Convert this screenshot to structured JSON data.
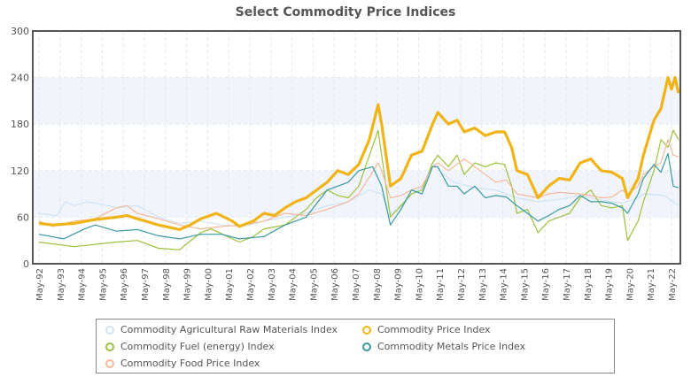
{
  "chart_data": {
    "type": "line",
    "title": "Select Commodity Price Indices",
    "xlabel": "",
    "ylabel": "",
    "ylim": [
      0,
      300
    ],
    "yticks": [
      0,
      60,
      120,
      180,
      240,
      300
    ],
    "xticks": [
      "May-92",
      "May-93",
      "May-94",
      "May-95",
      "May-96",
      "May-97",
      "May-98",
      "May-99",
      "May-00",
      "May-01",
      "May-02",
      "May-03",
      "May-04",
      "May-05",
      "May-06",
      "May-07",
      "May-08",
      "May-09",
      "May-10",
      "May-11",
      "May-12",
      "May-13",
      "May-14",
      "May-15",
      "May-16",
      "May-17",
      "May-18",
      "May-19",
      "May-20",
      "May-21",
      "May-22"
    ],
    "grid": "vertical dashed, alternating horizontal bands",
    "legend_placement": "bottom",
    "series": [
      {
        "name": "Commodity Agricultural Raw Materials Index",
        "color": "#cfe3f3",
        "width": 1.2,
        "x": [
          "1992-05",
          "1993-03",
          "1993-08",
          "1994-01",
          "1994-08",
          "1995-01",
          "1995-08",
          "1996-01",
          "1997-01",
          "1998-01",
          "1999-01",
          "2000-01",
          "2001-01",
          "2002-01",
          "2003-01",
          "2004-01",
          "2005-01",
          "2006-01",
          "2007-01",
          "2008-01",
          "2008-08",
          "2009-01",
          "2009-08",
          "2010-01",
          "2010-08",
          "2011-01",
          "2011-05",
          "2012-01",
          "2013-01",
          "2014-01",
          "2015-01",
          "2016-01",
          "2017-01",
          "2018-01",
          "2019-01",
          "2020-01",
          "2020-10",
          "2021-01",
          "2022-01",
          "2022-09"
        ],
        "y": [
          65,
          62,
          80,
          75,
          80,
          78,
          75,
          72,
          75,
          60,
          52,
          55,
          50,
          48,
          55,
          60,
          65,
          75,
          80,
          95,
          90,
          65,
          75,
          90,
          100,
          130,
          120,
          105,
          98,
          95,
          85,
          80,
          83,
          88,
          82,
          78,
          85,
          90,
          88,
          75
        ]
      },
      {
        "name": "Commodity Fuel (energy) Index",
        "color": "#9dc13a",
        "width": 1.2,
        "x": [
          "1992-05",
          "1994-01",
          "1996-01",
          "1997-01",
          "1998-01",
          "1999-01",
          "2000-01",
          "2000-07",
          "2001-11",
          "2002-07",
          "2003-01",
          "2004-01",
          "2005-01",
          "2005-07",
          "2006-01",
          "2006-07",
          "2007-01",
          "2007-07",
          "2008-06",
          "2008-08",
          "2009-01",
          "2009-07",
          "2010-01",
          "2010-07",
          "2011-01",
          "2011-04",
          "2011-10",
          "2012-03",
          "2012-07",
          "2013-01",
          "2013-07",
          "2014-01",
          "2014-06",
          "2014-10",
          "2015-01",
          "2015-07",
          "2016-01",
          "2016-07",
          "2017-01",
          "2017-07",
          "2018-01",
          "2018-07",
          "2019-01",
          "2019-07",
          "2020-01",
          "2020-04",
          "2020-10",
          "2021-01",
          "2021-07",
          "2021-11",
          "2022-03",
          "2022-06",
          "2022-09"
        ],
        "y": [
          28,
          22,
          28,
          30,
          20,
          18,
          40,
          45,
          28,
          35,
          45,
          50,
          70,
          85,
          95,
          88,
          85,
          100,
          172,
          140,
          60,
          75,
          90,
          95,
          130,
          140,
          125,
          140,
          115,
          130,
          125,
          130,
          128,
          100,
          65,
          70,
          40,
          55,
          60,
          65,
          85,
          95,
          75,
          72,
          75,
          30,
          55,
          80,
          120,
          160,
          150,
          172,
          160
        ]
      },
      {
        "name": "Commodity Food Price Index",
        "color": "#f4b89a",
        "width": 1.2,
        "x": [
          "1992-05",
          "1993-01",
          "1994-01",
          "1995-01",
          "1996-01",
          "1996-07",
          "1997-01",
          "1998-01",
          "1999-01",
          "2000-01",
          "2001-01",
          "2002-01",
          "2003-01",
          "2004-01",
          "2005-01",
          "2006-01",
          "2007-01",
          "2007-07",
          "2008-06",
          "2008-08",
          "2009-01",
          "2009-07",
          "2010-01",
          "2010-07",
          "2011-01",
          "2011-04",
          "2011-10",
          "2012-07",
          "2013-01",
          "2013-07",
          "2014-01",
          "2014-07",
          "2015-01",
          "2016-01",
          "2016-07",
          "2017-01",
          "2018-01",
          "2018-07",
          "2019-01",
          "2019-07",
          "2020-01",
          "2020-04",
          "2020-10",
          "2021-01",
          "2021-07",
          "2021-11",
          "2022-03",
          "2022-06",
          "2022-09"
        ],
        "y": [
          55,
          48,
          55,
          58,
          72,
          75,
          65,
          58,
          50,
          45,
          48,
          50,
          55,
          65,
          62,
          70,
          80,
          90,
          130,
          120,
          85,
          88,
          95,
          100,
          125,
          130,
          120,
          135,
          125,
          115,
          105,
          108,
          90,
          85,
          90,
          92,
          90,
          88,
          85,
          86,
          95,
          90,
          100,
          115,
          125,
          130,
          160,
          140,
          138
        ]
      },
      {
        "name": "Commodity Metals Price Index",
        "color": "#3a9aa0",
        "width": 1.2,
        "x": [
          "1992-05",
          "1993-07",
          "1994-07",
          "1995-01",
          "1996-01",
          "1997-01",
          "1998-01",
          "1999-01",
          "2000-01",
          "2001-01",
          "2001-11",
          "2003-01",
          "2004-01",
          "2005-01",
          "2006-01",
          "2006-07",
          "2007-01",
          "2007-07",
          "2008-03",
          "2008-08",
          "2009-01",
          "2009-07",
          "2010-01",
          "2010-07",
          "2011-01",
          "2011-04",
          "2011-10",
          "2012-03",
          "2012-07",
          "2013-01",
          "2013-07",
          "2014-01",
          "2014-07",
          "2015-01",
          "2015-07",
          "2016-01",
          "2016-07",
          "2017-01",
          "2017-07",
          "2018-01",
          "2018-07",
          "2019-01",
          "2019-07",
          "2020-01",
          "2020-04",
          "2020-10",
          "2021-01",
          "2021-07",
          "2021-11",
          "2022-03",
          "2022-06",
          "2022-09"
        ],
        "y": [
          38,
          32,
          45,
          50,
          42,
          44,
          36,
          32,
          38,
          38,
          32,
          35,
          50,
          60,
          95,
          100,
          105,
          120,
          125,
          100,
          50,
          70,
          95,
          90,
          125,
          125,
          100,
          100,
          90,
          100,
          85,
          88,
          86,
          75,
          65,
          55,
          62,
          70,
          75,
          88,
          80,
          80,
          78,
          72,
          65,
          90,
          110,
          128,
          118,
          142,
          100,
          98
        ]
      },
      {
        "name": "Commodity Price Index",
        "color": "#f0b418",
        "width": 3.2,
        "x": [
          "1992-05",
          "1993-01",
          "1994-01",
          "1995-01",
          "1996-01",
          "1996-07",
          "1997-01",
          "1998-01",
          "1999-01",
          "1999-07",
          "2000-01",
          "2000-10",
          "2001-07",
          "2001-11",
          "2002-07",
          "2003-01",
          "2003-07",
          "2004-01",
          "2004-07",
          "2005-01",
          "2005-07",
          "2006-01",
          "2006-07",
          "2007-01",
          "2007-07",
          "2008-01",
          "2008-06",
          "2008-08",
          "2009-01",
          "2009-07",
          "2010-01",
          "2010-07",
          "2011-01",
          "2011-04",
          "2011-10",
          "2012-03",
          "2012-07",
          "2013-01",
          "2013-07",
          "2014-01",
          "2014-06",
          "2014-10",
          "2015-01",
          "2015-07",
          "2016-01",
          "2016-07",
          "2017-01",
          "2017-07",
          "2018-01",
          "2018-07",
          "2019-01",
          "2019-07",
          "2020-01",
          "2020-04",
          "2020-10",
          "2021-01",
          "2021-07",
          "2021-11",
          "2022-03",
          "2022-05",
          "2022-07",
          "2022-09"
        ],
        "y": [
          52,
          50,
          52,
          57,
          60,
          62,
          58,
          50,
          44,
          50,
          58,
          65,
          55,
          48,
          55,
          65,
          62,
          72,
          80,
          85,
          95,
          105,
          120,
          115,
          128,
          160,
          205,
          180,
          100,
          110,
          140,
          145,
          180,
          195,
          180,
          185,
          170,
          175,
          165,
          170,
          170,
          150,
          120,
          115,
          85,
          100,
          110,
          108,
          130,
          135,
          120,
          118,
          110,
          85,
          110,
          140,
          185,
          200,
          240,
          225,
          240,
          220
        ]
      }
    ]
  }
}
